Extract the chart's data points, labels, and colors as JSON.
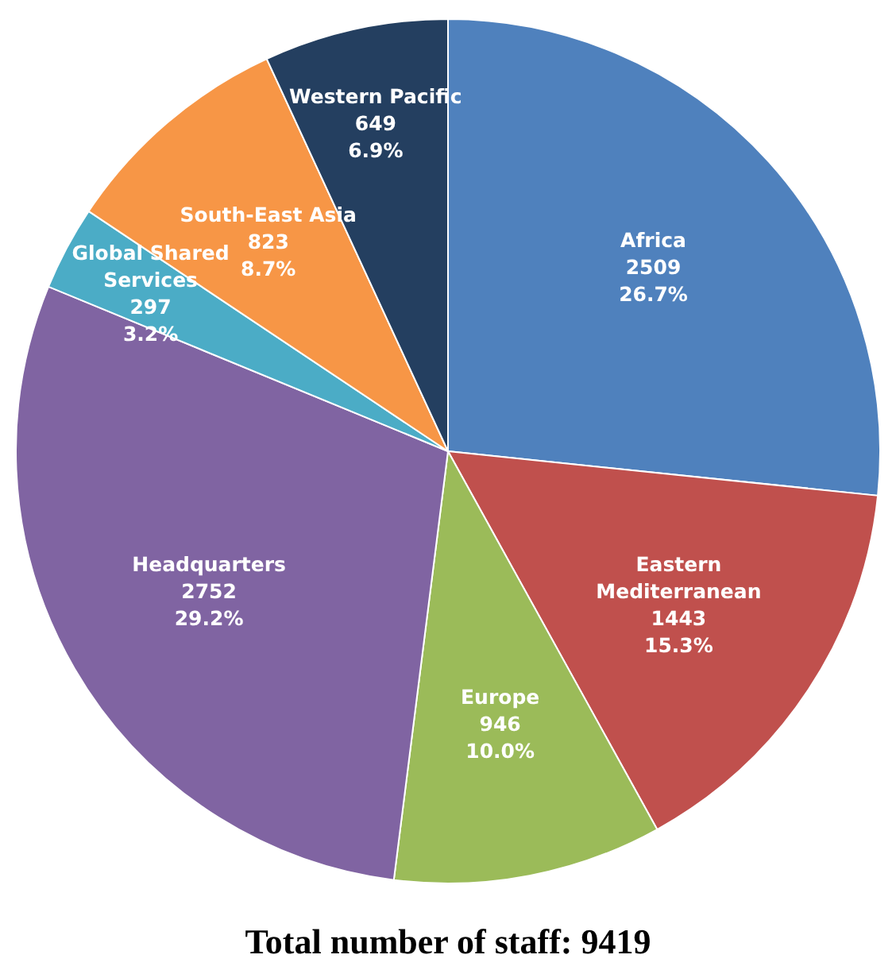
{
  "chart_data": {
    "type": "pie",
    "title": "Total number of staff: 9419",
    "categories": [
      "Africa",
      "Eastern Mediterranean",
      "Europe",
      "Headquarters",
      "Global Shared Services",
      "South-East Asia",
      "Western Pacific"
    ],
    "values": [
      2509,
      1443,
      946,
      2752,
      297,
      823,
      649
    ],
    "colors": [
      "#4f81bd",
      "#c0504d",
      "#9bbb59",
      "#8064a2",
      "#4bacc6",
      "#f79646",
      "#243f60"
    ],
    "data_labels": true,
    "annotations": [
      "26.7%",
      "15.3%",
      "10.0%",
      "29.2%",
      "3.2%",
      "8.7%",
      "6.9%"
    ],
    "legend": false
  }
}
